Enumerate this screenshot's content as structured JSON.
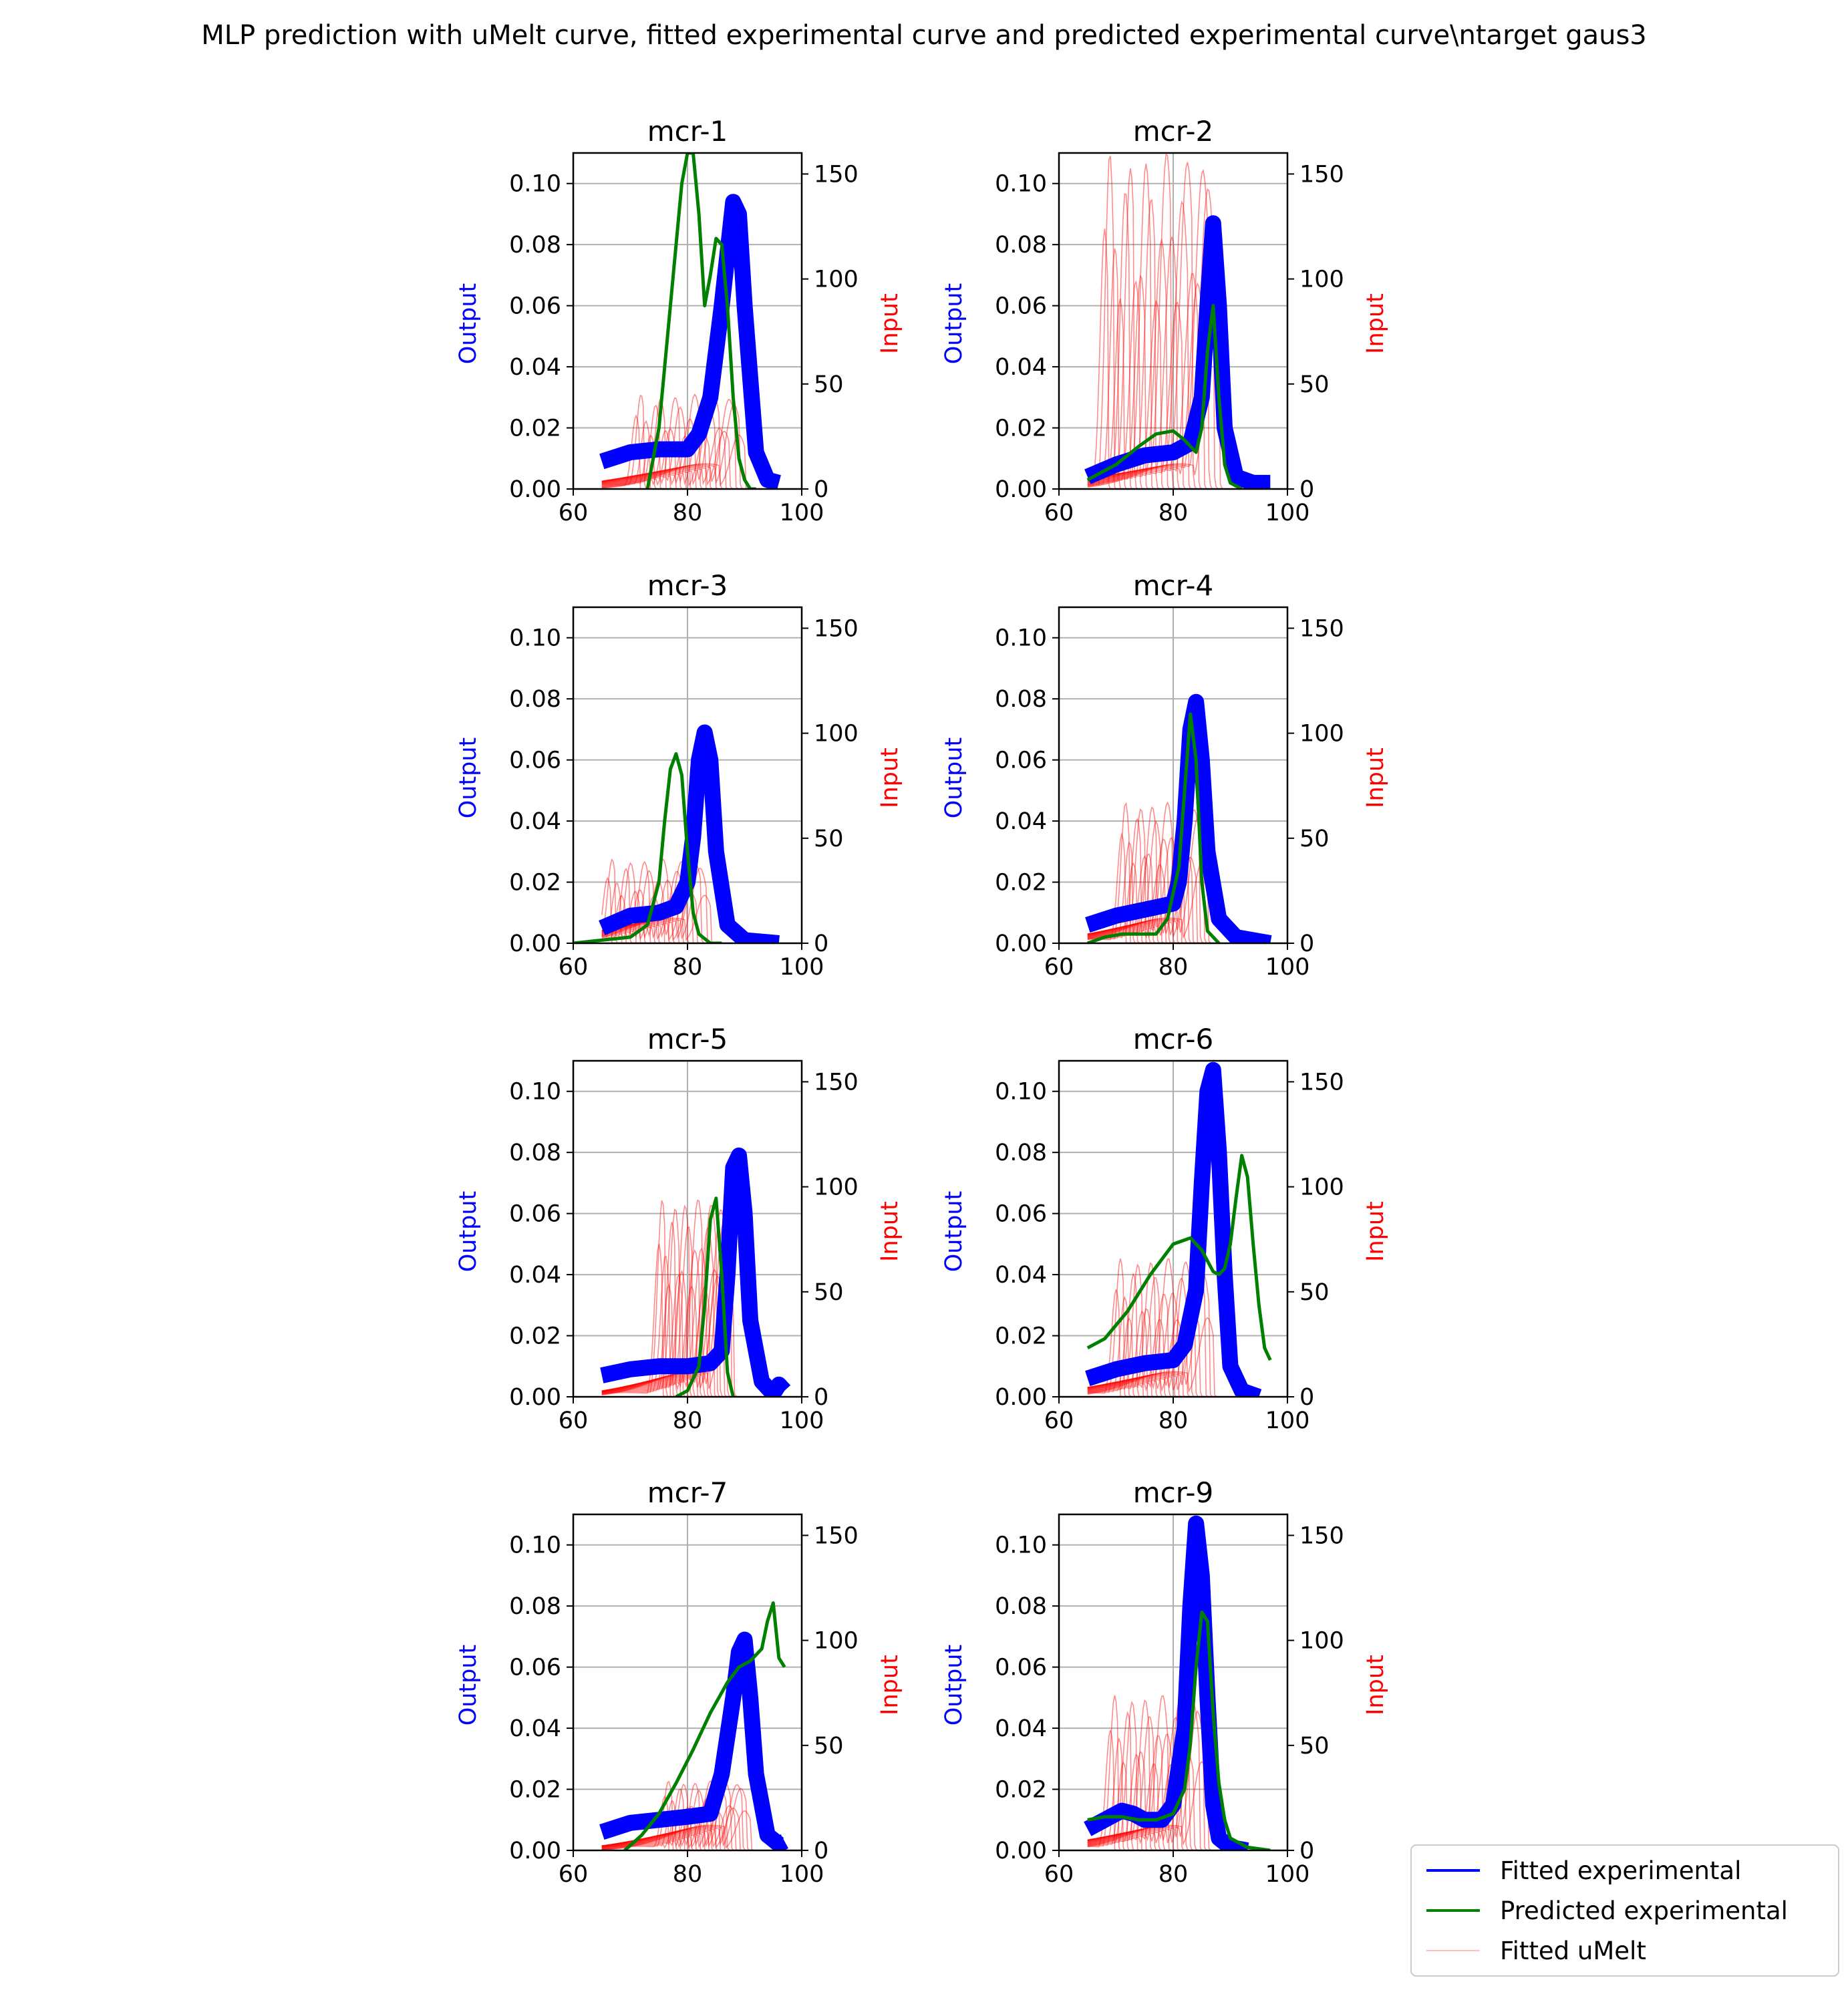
{
  "figure": {
    "suptitle": "MLP prediction with uMelt curve, fitted experimental curve and predicted experimental curve\\ntarget gaus3"
  },
  "legend": {
    "placement": "bottom-right, outside axes",
    "entries": [
      {
        "label": "Fitted experimental",
        "color": "#0000ff"
      },
      {
        "label": "Predicted experimental",
        "color": "#008000"
      },
      {
        "label": "Fitted uMelt",
        "color": "#ff0000"
      }
    ]
  },
  "colors": {
    "fitted_experimental": "#0000ff",
    "predicted_experimental": "#008000",
    "fitted_umelt": "#ff0000",
    "grid": "#b0b0b0"
  },
  "chart_data": [
    {
      "type": "line",
      "title": "mcr-1",
      "ylabel": "Output",
      "y2label": "Input",
      "xlim": [
        60,
        100
      ],
      "ylim": [
        0,
        0.11
      ],
      "y2lim": [
        0,
        160
      ],
      "grid": true,
      "xticks": [
        "60",
        "80",
        "100"
      ],
      "yticks": [
        "0.00",
        "0.02",
        "0.04",
        "0.06",
        "0.08",
        "0.10"
      ],
      "y2ticks": [
        "0",
        "50",
        "100",
        "150"
      ],
      "series": [
        {
          "name": "Fitted experimental",
          "band": true,
          "x": [
            65,
            70,
            75,
            80,
            82,
            84,
            86,
            88,
            89,
            90,
            92,
            94,
            96
          ],
          "y": [
            0.009,
            0.012,
            0.013,
            0.013,
            0.018,
            0.03,
            0.06,
            0.094,
            0.09,
            0.06,
            0.012,
            0.003,
            0.002
          ]
        },
        {
          "name": "Predicted experimental",
          "x": [
            73,
            75,
            77,
            79,
            80,
            81,
            82,
            83,
            84,
            85,
            86,
            87,
            88,
            89,
            90,
            91,
            92
          ],
          "y": [
            0.0,
            0.02,
            0.06,
            0.1,
            0.11,
            0.11,
            0.09,
            0.06,
            0.07,
            0.082,
            0.08,
            0.06,
            0.03,
            0.01,
            0.003,
            0.0,
            0.0
          ]
        },
        {
          "name": "Fitted uMelt",
          "x_range": [
            71,
            89
          ],
          "y2_peak": 45
        }
      ]
    },
    {
      "type": "line",
      "title": "mcr-2",
      "ylabel": "Output",
      "y2label": "Input",
      "xlim": [
        60,
        100
      ],
      "ylim": [
        0,
        0.11
      ],
      "y2lim": [
        0,
        160
      ],
      "grid": true,
      "xticks": [
        "60",
        "80",
        "100"
      ],
      "yticks": [
        "0.00",
        "0.02",
        "0.04",
        "0.06",
        "0.08",
        "0.10"
      ],
      "y2ticks": [
        "0",
        "50",
        "100",
        "150"
      ],
      "series": [
        {
          "name": "Fitted experimental",
          "band": true,
          "x": [
            65,
            70,
            75,
            80,
            83,
            85,
            86,
            87,
            88,
            89,
            91,
            94,
            97
          ],
          "y": [
            0.004,
            0.008,
            0.011,
            0.012,
            0.015,
            0.03,
            0.06,
            0.087,
            0.06,
            0.02,
            0.004,
            0.002,
            0.002
          ]
        },
        {
          "name": "Predicted experimental",
          "x": [
            65,
            70,
            74,
            77,
            80,
            82,
            84,
            85,
            86,
            87,
            88,
            89,
            90,
            92
          ],
          "y": [
            0.003,
            0.008,
            0.014,
            0.018,
            0.019,
            0.016,
            0.012,
            0.02,
            0.045,
            0.06,
            0.03,
            0.008,
            0.002,
            0.0
          ]
        },
        {
          "name": "Fitted uMelt",
          "x_range": [
            68,
            87
          ],
          "y2_peak": 160
        }
      ]
    },
    {
      "type": "line",
      "title": "mcr-3",
      "ylabel": "Output",
      "y2label": "Input",
      "xlim": [
        60,
        100
      ],
      "ylim": [
        0,
        0.11
      ],
      "y2lim": [
        0,
        160
      ],
      "grid": true,
      "xticks": [
        "60",
        "80",
        "100"
      ],
      "yticks": [
        "0.00",
        "0.02",
        "0.04",
        "0.06",
        "0.08",
        "0.10"
      ],
      "y2ticks": [
        "0",
        "50",
        "100",
        "150"
      ],
      "series": [
        {
          "name": "Fitted experimental",
          "band": true,
          "x": [
            65,
            70,
            75,
            78,
            80,
            81,
            82,
            83,
            84,
            85,
            87,
            90,
            96
          ],
          "y": [
            0.005,
            0.009,
            0.01,
            0.012,
            0.02,
            0.035,
            0.06,
            0.069,
            0.06,
            0.03,
            0.006,
            0.001,
            0.0
          ]
        },
        {
          "name": "Predicted experimental",
          "x": [
            60,
            65,
            70,
            73,
            75,
            76,
            77,
            78,
            79,
            80,
            81,
            82,
            84,
            86
          ],
          "y": [
            0.0,
            0.001,
            0.002,
            0.006,
            0.02,
            0.04,
            0.057,
            0.062,
            0.055,
            0.03,
            0.01,
            0.003,
            0.0,
            0.0
          ]
        },
        {
          "name": "Fitted uMelt",
          "x_range": [
            66,
            83
          ],
          "y2_peak": 40
        }
      ]
    },
    {
      "type": "line",
      "title": "mcr-4",
      "ylabel": "Output",
      "y2label": "Input",
      "xlim": [
        60,
        100
      ],
      "ylim": [
        0,
        0.11
      ],
      "y2lim": [
        0,
        160
      ],
      "grid": true,
      "xticks": [
        "60",
        "80",
        "100"
      ],
      "yticks": [
        "0.00",
        "0.02",
        "0.04",
        "0.06",
        "0.08",
        "0.10"
      ],
      "y2ticks": [
        "0",
        "50",
        "100",
        "150"
      ],
      "series": [
        {
          "name": "Fitted experimental",
          "band": true,
          "x": [
            65,
            70,
            75,
            80,
            81,
            82,
            83,
            84,
            85,
            86,
            88,
            91,
            97
          ],
          "y": [
            0.006,
            0.009,
            0.011,
            0.013,
            0.02,
            0.04,
            0.07,
            0.079,
            0.06,
            0.03,
            0.008,
            0.002,
            0.0
          ]
        },
        {
          "name": "Predicted experimental",
          "x": [
            65,
            68,
            71,
            74,
            77,
            79,
            81,
            82,
            83,
            84,
            85,
            86,
            88
          ],
          "y": [
            0.0,
            0.002,
            0.003,
            0.003,
            0.003,
            0.008,
            0.025,
            0.05,
            0.075,
            0.06,
            0.02,
            0.004,
            0.0
          ]
        },
        {
          "name": "Fitted uMelt",
          "x_range": [
            71,
            85
          ],
          "y2_peak": 67
        }
      ]
    },
    {
      "type": "line",
      "title": "mcr-5",
      "ylabel": "Output",
      "y2label": "Input",
      "xlim": [
        60,
        100
      ],
      "ylim": [
        0,
        0.11
      ],
      "y2lim": [
        0,
        160
      ],
      "grid": true,
      "xticks": [
        "60",
        "80",
        "100"
      ],
      "yticks": [
        "0.00",
        "0.02",
        "0.04",
        "0.06",
        "0.08",
        "0.10"
      ],
      "y2ticks": [
        "0",
        "50",
        "100",
        "150"
      ],
      "series": [
        {
          "name": "Fitted experimental",
          "band": true,
          "x": [
            65,
            70,
            75,
            80,
            84,
            86,
            87,
            88,
            89,
            90,
            91,
            93,
            95,
            96,
            97
          ],
          "y": [
            0.007,
            0.009,
            0.01,
            0.01,
            0.011,
            0.015,
            0.04,
            0.075,
            0.079,
            0.06,
            0.025,
            0.005,
            0.001,
            0.004,
            0.002
          ]
        },
        {
          "name": "Predicted experimental",
          "x": [
            78,
            80,
            82,
            83,
            84,
            85,
            86,
            87,
            88
          ],
          "y": [
            0.0,
            0.002,
            0.01,
            0.03,
            0.058,
            0.065,
            0.04,
            0.008,
            0.0
          ]
        },
        {
          "name": "Fitted uMelt",
          "x_range": [
            75,
            87
          ],
          "y2_peak": 94
        }
      ]
    },
    {
      "type": "line",
      "title": "mcr-6",
      "ylabel": "Output",
      "y2label": "Input",
      "xlim": [
        60,
        100
      ],
      "ylim": [
        0,
        0.11
      ],
      "y2lim": [
        0,
        160
      ],
      "grid": true,
      "xticks": [
        "60",
        "80",
        "100"
      ],
      "yticks": [
        "0.00",
        "0.02",
        "0.04",
        "0.06",
        "0.08",
        "0.10"
      ],
      "y2ticks": [
        "0",
        "50",
        "100",
        "150"
      ],
      "series": [
        {
          "name": "Fitted experimental",
          "band": true,
          "x": [
            65,
            70,
            75,
            80,
            82,
            84,
            85,
            86,
            87,
            88,
            89,
            90,
            92,
            95
          ],
          "y": [
            0.006,
            0.009,
            0.011,
            0.012,
            0.017,
            0.035,
            0.07,
            0.1,
            0.107,
            0.08,
            0.04,
            0.01,
            0.002,
            0.0
          ]
        },
        {
          "name": "Predicted experimental",
          "x": [
            65,
            68,
            72,
            76,
            80,
            83,
            85,
            87,
            88,
            89,
            90,
            91,
            92,
            93,
            94,
            95,
            96,
            97
          ],
          "y": [
            0.016,
            0.019,
            0.028,
            0.04,
            0.05,
            0.052,
            0.048,
            0.041,
            0.04,
            0.042,
            0.05,
            0.065,
            0.079,
            0.072,
            0.05,
            0.03,
            0.016,
            0.012
          ]
        },
        {
          "name": "Fitted uMelt",
          "x_range": [
            70,
            86
          ],
          "y2_peak": 66
        }
      ]
    },
    {
      "type": "line",
      "title": "mcr-7",
      "ylabel": "Output",
      "y2label": "Input",
      "xlim": [
        60,
        100
      ],
      "ylim": [
        0,
        0.11
      ],
      "y2lim": [
        0,
        160
      ],
      "grid": true,
      "xticks": [
        "60",
        "80",
        "100"
      ],
      "yticks": [
        "0.00",
        "0.02",
        "0.04",
        "0.06",
        "0.08",
        "0.10"
      ],
      "y2ticks": [
        "0",
        "50",
        "100",
        "150"
      ],
      "series": [
        {
          "name": "Fitted experimental",
          "band": true,
          "x": [
            65,
            70,
            75,
            80,
            84,
            86,
            88,
            89,
            90,
            91,
            92,
            94,
            96,
            97
          ],
          "y": [
            0.006,
            0.009,
            0.01,
            0.011,
            0.012,
            0.025,
            0.05,
            0.065,
            0.069,
            0.05,
            0.025,
            0.005,
            0.002,
            0.003
          ]
        },
        {
          "name": "Predicted experimental",
          "x": [
            69,
            72,
            75,
            78,
            81,
            84,
            87,
            89,
            91,
            92,
            93,
            94,
            95,
            96,
            97
          ],
          "y": [
            0.0,
            0.005,
            0.012,
            0.022,
            0.033,
            0.045,
            0.055,
            0.06,
            0.062,
            0.064,
            0.066,
            0.075,
            0.081,
            0.063,
            0.06
          ]
        },
        {
          "name": "Fitted uMelt",
          "x_range": [
            76,
            90
          ],
          "y2_peak": 33
        }
      ]
    },
    {
      "type": "line",
      "title": "mcr-9",
      "ylabel": "Output",
      "y2label": "Input",
      "xlim": [
        60,
        100
      ],
      "ylim": [
        0,
        0.11
      ],
      "y2lim": [
        0,
        160
      ],
      "grid": true,
      "xticks": [
        "60",
        "80",
        "100"
      ],
      "yticks": [
        "0.00",
        "0.02",
        "0.04",
        "0.06",
        "0.08",
        "0.10"
      ],
      "y2ticks": [
        "0",
        "50",
        "100",
        "150"
      ],
      "series": [
        {
          "name": "Fitted experimental",
          "band": true,
          "x": [
            65,
            68,
            71,
            73,
            75,
            78,
            80,
            82,
            83,
            84,
            85,
            86,
            87,
            88,
            90,
            93
          ],
          "y": [
            0.007,
            0.01,
            0.013,
            0.012,
            0.01,
            0.01,
            0.015,
            0.04,
            0.08,
            0.107,
            0.09,
            0.05,
            0.015,
            0.004,
            0.001,
            0.0
          ]
        },
        {
          "name": "Predicted experimental",
          "x": [
            65,
            68,
            71,
            74,
            77,
            80,
            82,
            83,
            84,
            85,
            86,
            87,
            88,
            89,
            90,
            93,
            97
          ],
          "y": [
            0.01,
            0.011,
            0.011,
            0.01,
            0.01,
            0.012,
            0.02,
            0.035,
            0.06,
            0.078,
            0.075,
            0.045,
            0.022,
            0.01,
            0.004,
            0.001,
            0.0
          ]
        },
        {
          "name": "Fitted uMelt",
          "x_range": [
            69,
            85
          ],
          "y2_peak": 74
        }
      ]
    }
  ]
}
